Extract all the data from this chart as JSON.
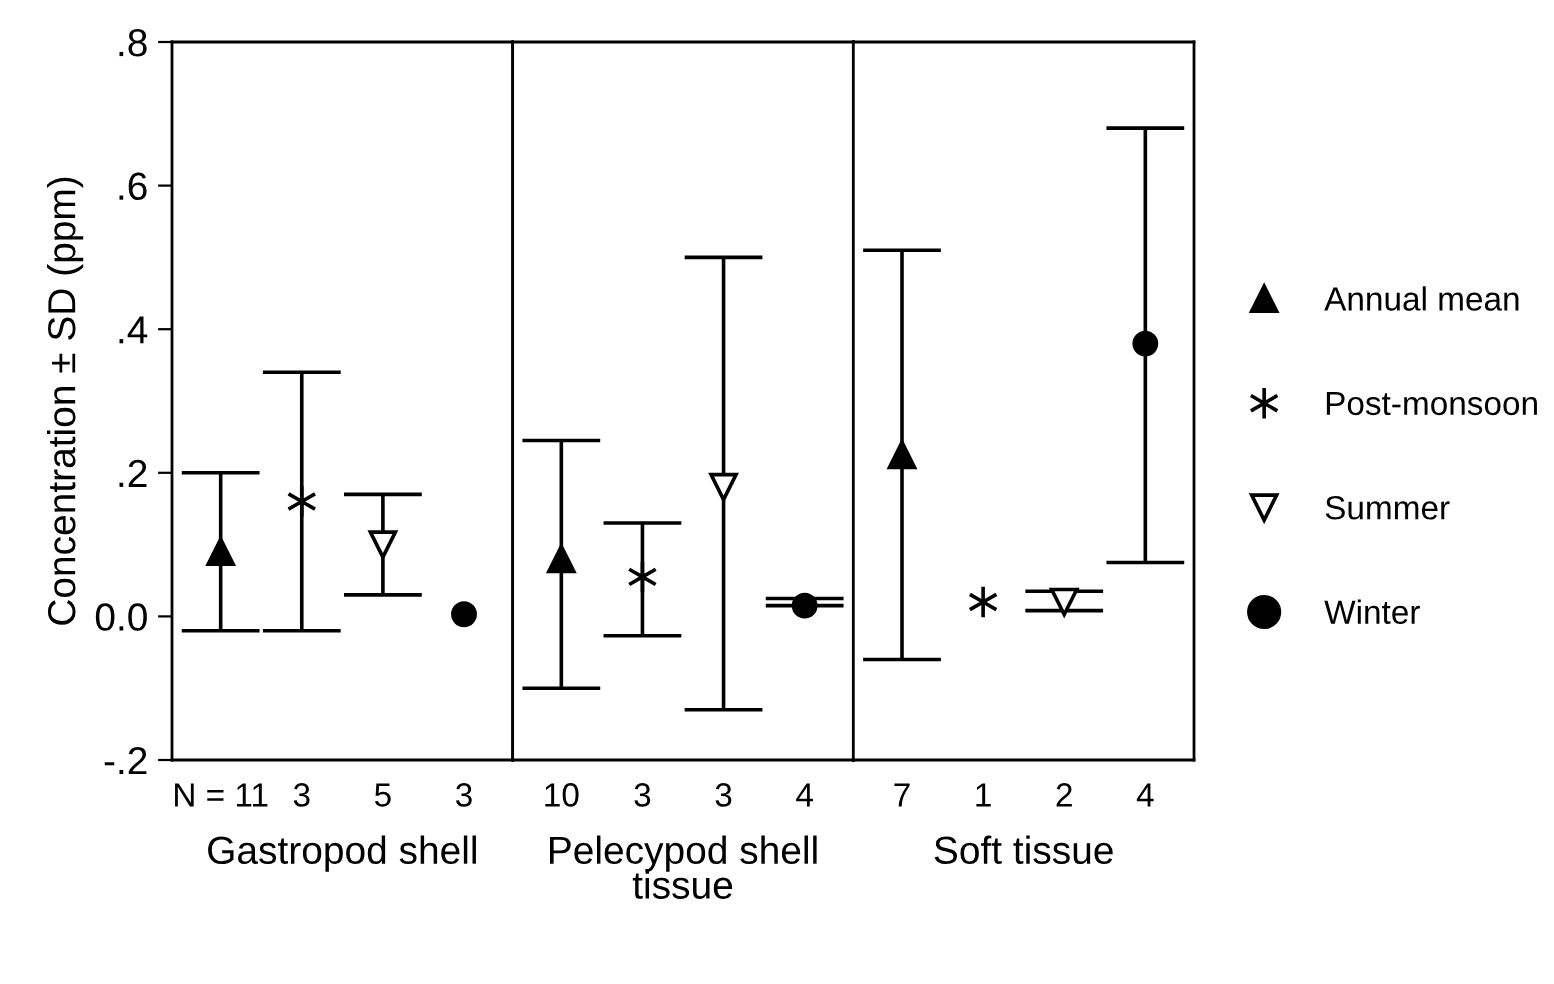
{
  "chart_data": [
    {
      "type": "scatter",
      "ylabel": "Concentration ± SD (ppm)",
      "xlabel": "Gastropod shell",
      "categories": [
        "N = 11",
        "3",
        "5",
        "3"
      ],
      "ylim": [
        -0.2,
        0.8
      ],
      "yticks": [
        {
          "value": -0.2,
          "label": "-.2"
        },
        {
          "value": 0.0,
          "label": "0.0"
        },
        {
          "value": 0.2,
          "label": ".2"
        },
        {
          "value": 0.4,
          "label": ".4"
        },
        {
          "value": 0.6,
          "label": ".6"
        },
        {
          "value": 0.8,
          "label": ".8"
        }
      ],
      "grid": false,
      "legend": false,
      "series": [
        {
          "color": "#000000",
          "marker": "triangle",
          "values": [
            0.09,
            null,
            null,
            null
          ],
          "errors": [
            [
              -0.02,
              0.2
            ],
            null,
            null,
            null
          ]
        },
        {
          "color": "#000000",
          "marker": "cross",
          "values": [
            null,
            0.16,
            null,
            null
          ],
          "errors": [
            null,
            [
              -0.02,
              0.34
            ],
            null,
            null
          ]
        },
        {
          "color": "#000000",
          "marker": "triangle_down",
          "values": [
            null,
            null,
            0.1,
            null
          ],
          "errors": [
            null,
            null,
            [
              0.03,
              0.17
            ],
            null
          ]
        },
        {
          "color": "#000000",
          "marker": "circle",
          "values": [
            null,
            null,
            null,
            0.003
          ],
          "errors": [
            null,
            null,
            null,
            null
          ]
        }
      ]
    },
    {
      "type": "scatter",
      "xlabel": "Pelecypod shell tissue",
      "categories": [
        "10",
        "3",
        "3",
        "4"
      ],
      "ylim": [
        -0.2,
        0.8
      ],
      "tick_labels": "x",
      "grid": false,
      "legend": false,
      "series": [
        {
          "color": "#000000",
          "marker": "triangle",
          "values": [
            0.08,
            null,
            null,
            null
          ],
          "errors": [
            [
              -0.1,
              0.245
            ],
            null,
            null,
            null
          ]
        },
        {
          "color": "#000000",
          "marker": "cross",
          "values": [
            null,
            0.055,
            null,
            null
          ],
          "errors": [
            null,
            [
              -0.027,
              0.13
            ],
            null,
            null
          ]
        },
        {
          "color": "#000000",
          "marker": "triangle_down",
          "values": [
            null,
            null,
            0.18,
            null
          ],
          "errors": [
            null,
            null,
            [
              -0.13,
              0.5
            ],
            null
          ]
        },
        {
          "color": "#000000",
          "marker": "circle",
          "values": [
            null,
            null,
            null,
            0.015
          ],
          "errors": [
            null,
            null,
            null,
            [
              0.015,
              0.025
            ]
          ]
        }
      ]
    },
    {
      "type": "scatter",
      "xlabel": "Soft tissue",
      "categories": [
        "7",
        "1",
        "2",
        "4"
      ],
      "ylim": [
        -0.2,
        0.8
      ],
      "tick_labels": "x",
      "grid": false,
      "legend": "right",
      "series": [
        {
          "name": "Annual mean",
          "color": "#000000",
          "marker": "triangle",
          "values": [
            0.225,
            null,
            null,
            null
          ],
          "errors": [
            [
              -0.06,
              0.51
            ],
            null,
            null,
            null
          ]
        },
        {
          "name": "Post-monsoon",
          "color": "#000000",
          "marker": "cross",
          "values": [
            null,
            0.02,
            null,
            null
          ],
          "errors": [
            null,
            null,
            null,
            null
          ]
        },
        {
          "name": "Summer",
          "color": "#000000",
          "marker": "triangle_down",
          "values": [
            null,
            null,
            0.02,
            null
          ],
          "errors": [
            null,
            null,
            [
              0.008,
              0.035
            ],
            null
          ]
        },
        {
          "name": "Winter",
          "color": "#000000",
          "marker": "circle",
          "values": [
            null,
            null,
            null,
            0.38
          ],
          "errors": [
            null,
            null,
            null,
            [
              0.075,
              0.68
            ]
          ]
        }
      ]
    }
  ]
}
